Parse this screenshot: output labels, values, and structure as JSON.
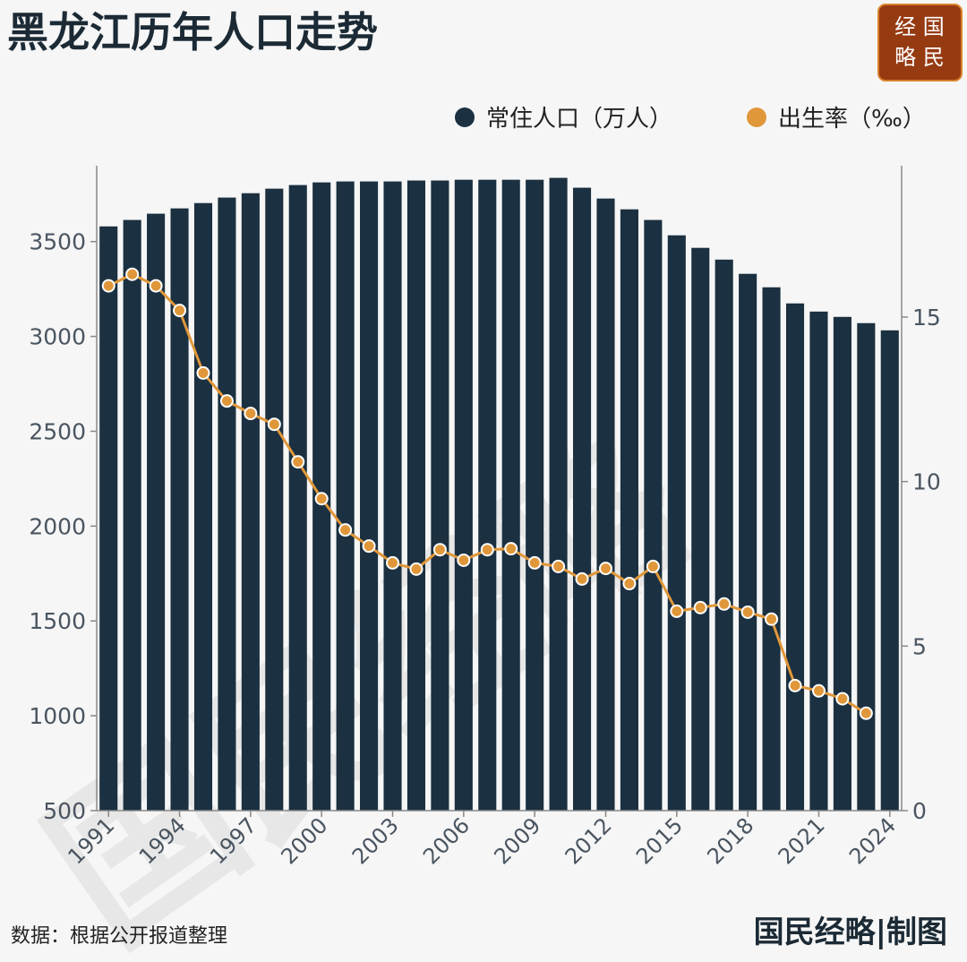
{
  "chart_data": {
    "type": "bar-line",
    "title": "黑龙江历年人口走势",
    "x": [
      1991,
      1992,
      1993,
      1994,
      1995,
      1996,
      1997,
      1998,
      1999,
      2000,
      2001,
      2002,
      2003,
      2004,
      2005,
      2006,
      2007,
      2008,
      2009,
      2010,
      2011,
      2012,
      2013,
      2014,
      2015,
      2016,
      2017,
      2018,
      2019,
      2020,
      2021,
      2022,
      2023,
      2024
    ],
    "xlim": [
      1990.5,
      2024.5
    ],
    "xticks": [
      1991,
      1994,
      1997,
      2000,
      2003,
      2006,
      2009,
      2012,
      2015,
      2018,
      2021,
      2024
    ],
    "ylim": [
      500,
      3900
    ],
    "yticks": [
      500,
      1000,
      1500,
      2000,
      2500,
      3000,
      3500
    ],
    "y2lim": [
      0,
      19.6
    ],
    "y2ticks": [
      0,
      5,
      10,
      15
    ],
    "series": [
      {
        "name": "常住人口（万人）",
        "color": "#1b3040",
        "values": [
          3580,
          3614,
          3647,
          3675,
          3703,
          3732,
          3755,
          3779,
          3798,
          3812,
          3817,
          3817,
          3817,
          3822,
          3822,
          3826,
          3826,
          3826,
          3826,
          3836,
          3784,
          3727,
          3670,
          3614,
          3533,
          3467,
          3405,
          3330,
          3259,
          3174,
          3131,
          3103,
          3070,
          3032
        ]
      },
      {
        "name": "出生率（‰）",
        "color": "#e0973a",
        "axis": "y2",
        "values": [
          15.95,
          16.3,
          15.95,
          15.2,
          13.3,
          12.45,
          12.07,
          11.74,
          10.6,
          9.48,
          8.53,
          8.04,
          7.53,
          7.34,
          7.93,
          7.61,
          7.93,
          7.96,
          7.53,
          7.42,
          7.04,
          7.36,
          6.9,
          7.42,
          6.06,
          6.17,
          6.28,
          6.03,
          5.82,
          3.8,
          3.64,
          3.4,
          2.96,
          null
        ]
      }
    ]
  },
  "logo": [
    "经 国",
    "略 民"
  ],
  "watermark": "国民经略",
  "source": "数据：根据公开报道整理",
  "credit": "国民经略|制图"
}
